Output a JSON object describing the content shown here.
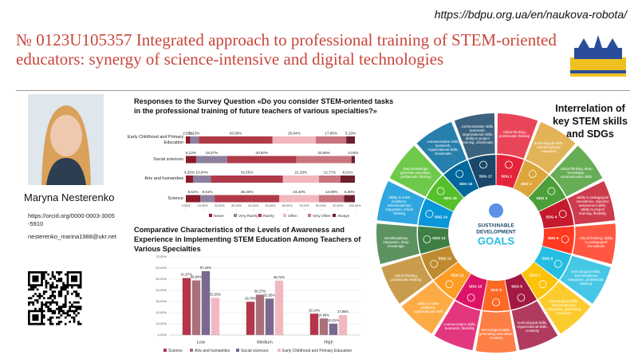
{
  "header": {
    "url": "https://bdpu.org.ua/en/naukova-robota/",
    "title": "№ 0123U105357 Integrated approach to professional training of STEM-oriented educators: synergy of science-intensive and digital technologies"
  },
  "author": {
    "name": "Maryna Nesterenko",
    "orcid": "https://orcid.org/0000-0003-3005-5910",
    "email": "nesterenko_marina1988@ukr.net"
  },
  "chart_data": [
    {
      "type": "barh",
      "stacked": true,
      "title": "Responses to the Survey Question «Do you consider STEM-oriented tasks in the professional training of future teachers of various specialties?»",
      "categories": [
        "Early Childhood and Primary Education",
        "Social sciences",
        "Arts and humanities",
        "Science"
      ],
      "series": [
        {
          "name": "Never",
          "color": "#8b1a2b",
          "values": [
            2.56,
            6.12,
            4.25,
            8.51
          ],
          "value_labels": [
            "2,56%",
            "6,12%",
            "4,25%",
            "8,51%"
          ]
        },
        {
          "name": "Very Rarely",
          "color": "#8e7f9e",
          "values": [
            5.13,
            18.37,
            10.64,
            8.51
          ],
          "value_labels": [
            "5,13%",
            "18,37%",
            "10,64%",
            "8,51%"
          ]
        },
        {
          "name": "Rarely",
          "color": "#b03a48",
          "values": [
            43.59,
            40.82,
            42.55,
            38.3
          ],
          "value_labels": [
            "43,59%",
            "40,82%",
            "42,55%",
            "38,30%"
          ]
        },
        {
          "name": "Often",
          "color": "#f2b6bd",
          "values": [
            25.64,
            null,
            21.29,
            23.4
          ],
          "value_labels": [
            "25,64%",
            null,
            "21,29%",
            "23,40%"
          ]
        },
        {
          "name": "Very Often",
          "color": "#c9737f",
          "values": [
            17.95,
            32.65,
            12.77,
            14.9
          ],
          "value_labels": [
            "17,95%",
            "32,65%",
            "12,77%",
            "14,90%"
          ]
        },
        {
          "name": "Always",
          "color": "#6d1f2e",
          "values": [
            5.13,
            2.04,
            8.51,
            6.38
          ],
          "value_labels": [
            "5,13%",
            "2,04%",
            "8,51%",
            "6,38%"
          ]
        }
      ],
      "xlim": [
        0,
        100
      ],
      "xticks": [
        {
          "value": 0,
          "label": "0,00%"
        },
        {
          "value": 10,
          "label": "10,00%"
        },
        {
          "value": 20,
          "label": "20,00%"
        },
        {
          "value": 30,
          "label": "30,00%"
        },
        {
          "value": 40,
          "label": "40,00%"
        },
        {
          "value": 50,
          "label": "50,00%"
        },
        {
          "value": 60,
          "label": "60,00%"
        },
        {
          "value": 70,
          "label": "70,00%"
        },
        {
          "value": 80,
          "label": "80,00%"
        },
        {
          "value": 90,
          "label": "90,00%"
        },
        {
          "value": 100,
          "label": "100,00%"
        }
      ],
      "legend": "bottom"
    },
    {
      "type": "bar",
      "title": "Comparative Characteristics of the Levels of Awareness and Experience in Implementing STEM Education Among Teachers of Various Specialties",
      "categories": [
        "Low",
        "Medium",
        "High"
      ],
      "series": [
        {
          "name": "Science",
          "color": "#b5364a",
          "values": [
            51.07,
            29.79,
            19.14
          ],
          "value_labels": [
            "51,07%",
            "29,79%",
            "19,14%"
          ]
        },
        {
          "name": "Arts and humanities",
          "color": "#a8707a",
          "values": [
            48.94,
            36.17,
            14.89
          ],
          "value_labels": [
            "48,94%",
            "36,17%",
            "14,89%"
          ]
        },
        {
          "name": "Social sciences",
          "color": "#7a6890",
          "values": [
            57.24,
            32.65,
            10.21
          ],
          "value_labels": [
            "57,24%",
            "32,65%",
            "10,21%"
          ]
        },
        {
          "name": "Early Childhood and Primary Education",
          "color": "#f2b8c0",
          "values": [
            33.33,
            48.72,
            17.95
          ],
          "value_labels": [
            "33,33%",
            "48,72%",
            "17,95%"
          ]
        }
      ],
      "ylim": [
        0,
        70
      ],
      "yticks": [
        {
          "value": 0,
          "label": "0,00%"
        },
        {
          "value": 10,
          "label": "10,00%"
        },
        {
          "value": 20,
          "label": "20,00%"
        },
        {
          "value": 30,
          "label": "30,00%"
        },
        {
          "value": 40,
          "label": "40,00%"
        },
        {
          "value": 50,
          "label": "50,00%"
        },
        {
          "value": 60,
          "label": "60,00%"
        },
        {
          "value": 70,
          "label": "70,00%"
        }
      ],
      "grid": true,
      "legend": "bottom"
    }
  ],
  "sdg_wheel": {
    "title": "Interrelation of key STEM skills and SDGs",
    "center_text": [
      "SUSTAINABLE",
      "DEVELOPMENT",
      "GOALS"
    ],
    "segments": [
      {
        "label": "SDG 1",
        "color": "#e5243b",
        "skills": "critical thinking, problematic thinking"
      },
      {
        "label": "SDG 2",
        "color": "#dda63a",
        "skills": "technological skills, interdisciplinary integration"
      },
      {
        "label": "SDG 3",
        "color": "#4c9f38",
        "skills": "critical thinking, deep knowledge, communication skills"
      },
      {
        "label": "SDG 4",
        "color": "#c5192d",
        "skills": "ability to pedagogical innovations, objective assessment skills, ability to project learning, flexibility"
      },
      {
        "label": "SDG 5",
        "color": "#ff3a21",
        "skills": "critical thinking, ability to pedagogical innovations"
      },
      {
        "label": "SDG 6",
        "color": "#26bde2",
        "skills": "technological skills, interdisciplinary integration, problematic thinking"
      },
      {
        "label": "SDG 7",
        "color": "#fcc30b",
        "skills": "technological skills, interdisciplinary integration, generating new ideas"
      },
      {
        "label": "SDG 8",
        "color": "#a21942",
        "skills": "technological skills, organizational skills, creativity"
      },
      {
        "label": "SDG 9",
        "color": "#fd6925",
        "skills": "technological skills, generating new ideas, creativity"
      },
      {
        "label": "SDG 10",
        "color": "#dd1367",
        "skills": "communication skills, teamwork, flexibility"
      },
      {
        "label": "SDG 11",
        "color": "#fd9d24",
        "skills": "ability to solve problems, organizational skills"
      },
      {
        "label": "SDG 12",
        "color": "#bf8b2e",
        "skills": "critical thinking, problematic thinking"
      },
      {
        "label": "SDG 13",
        "color": "#3f7e44",
        "skills": "interdisciplinary integration, deep knowledge"
      },
      {
        "label": "SDG 14",
        "color": "#0a97d9",
        "skills": "ability to solve problems, interdisciplinary integration, critical thinking"
      },
      {
        "label": "SDG 15",
        "color": "#56c02b",
        "skills": "deep knowledge, generate new ideas, problematic thinking"
      },
      {
        "label": "SDG 16",
        "color": "#00689d",
        "skills": "communication skills, teamwork, organizational skills, charismatic"
      },
      {
        "label": "SDG 17",
        "color": "#19486a",
        "skills": "communication skills, teamwork, organizational skills, ability to project learning, charismatic"
      }
    ]
  }
}
